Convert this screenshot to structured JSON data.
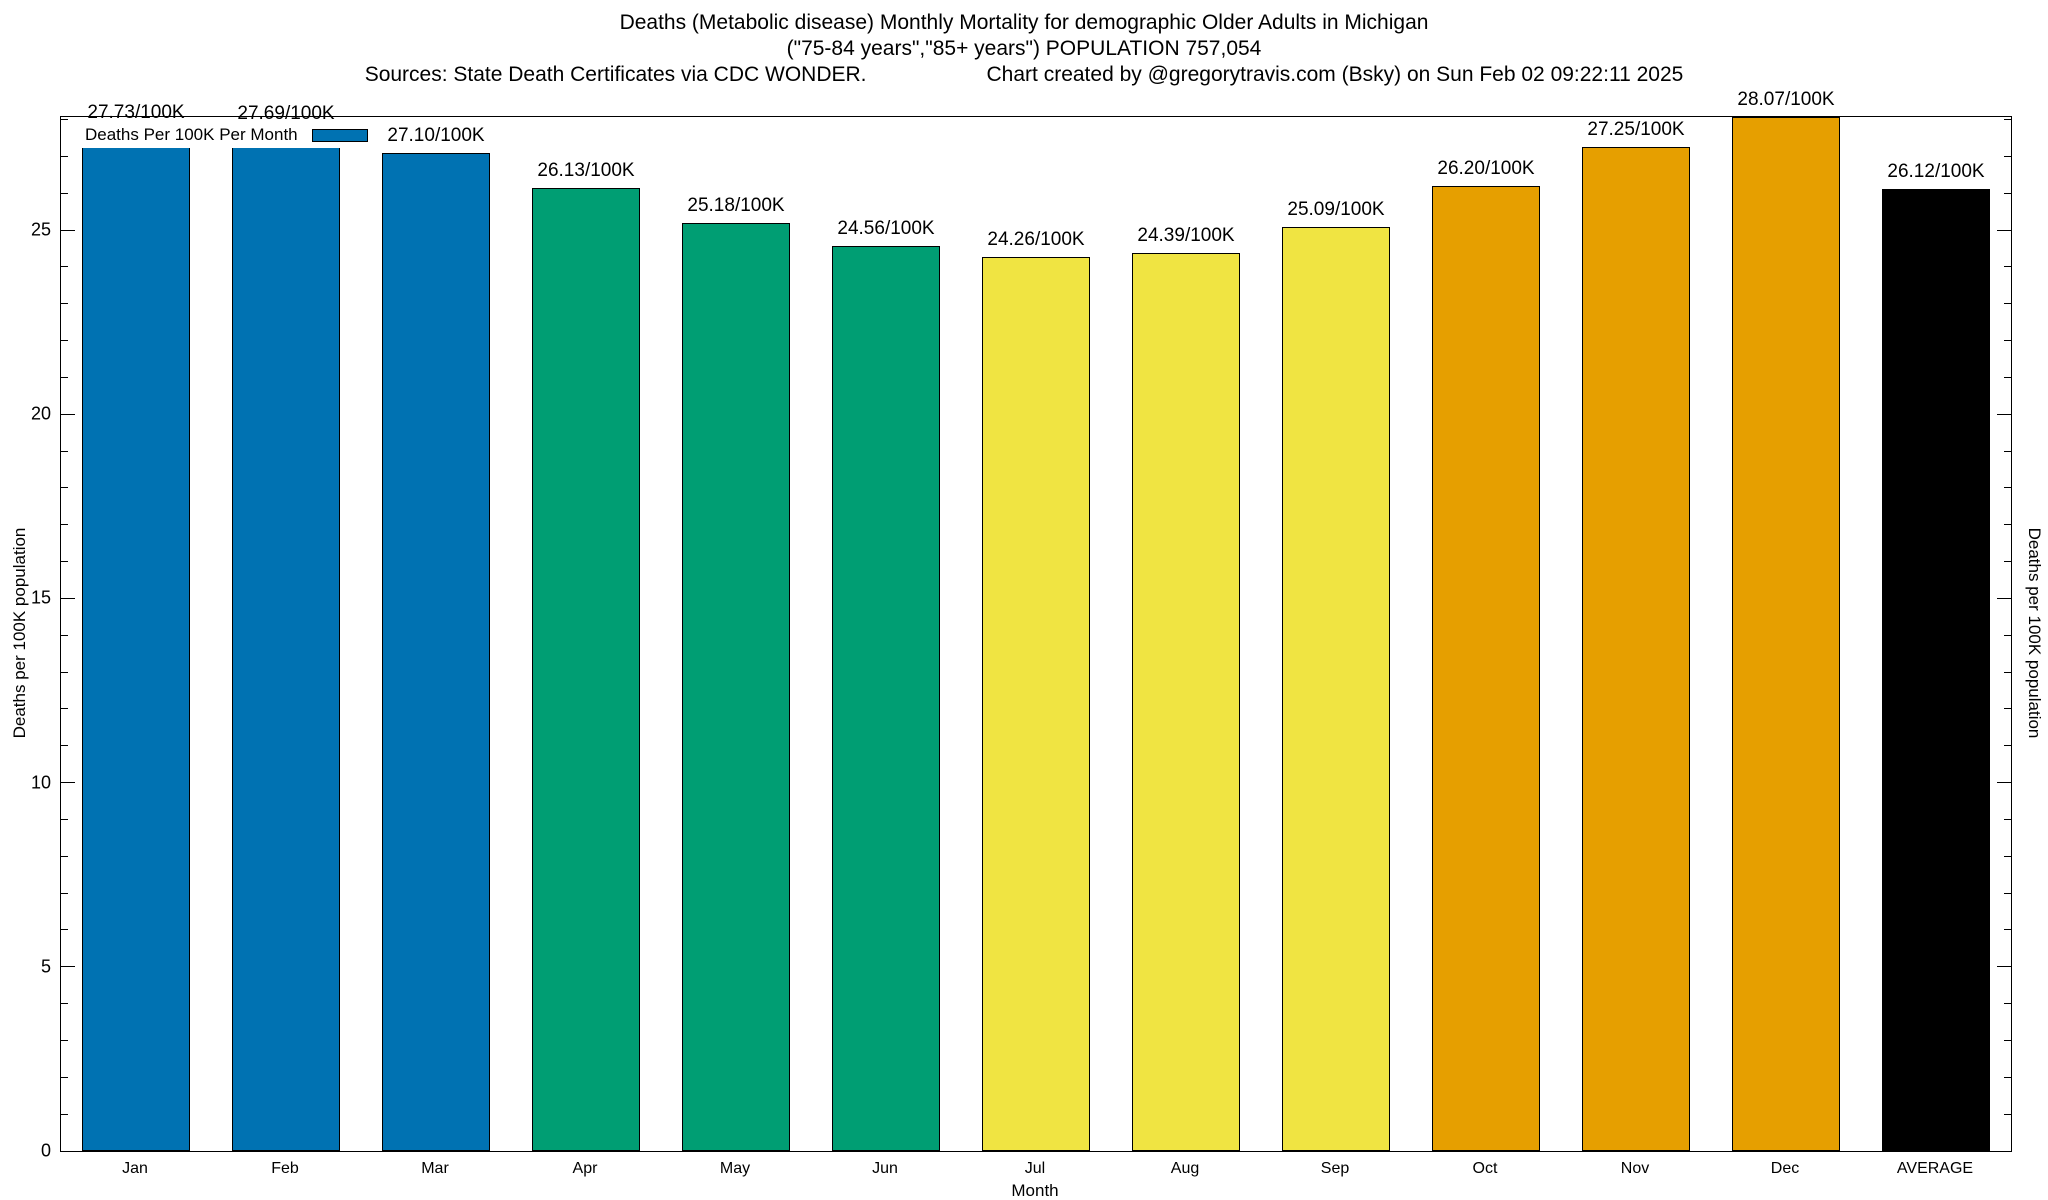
{
  "chart_data": {
    "type": "bar",
    "title": "Deaths (Metabolic disease) Monthly Mortality for demographic Older Adults in Michigan",
    "subtitle": "(\"75-84 years\",\"85+ years\") POPULATION 757,054",
    "source_note": "Sources: State Death Certificates via CDC WONDER.",
    "credit_note": "Chart created by @gregorytravis.com (Bsky) on Sun Feb 02 09:22:11 2025",
    "legend_label": "Deaths Per 100K Per Month",
    "legend_color": "#0072B2",
    "legend_position": "top-left-inside",
    "categories": [
      "Jan",
      "Feb",
      "Mar",
      "Apr",
      "May",
      "Jun",
      "Jul",
      "Aug",
      "Sep",
      "Oct",
      "Nov",
      "Dec",
      "AVERAGE"
    ],
    "values": [
      27.73,
      27.69,
      27.1,
      26.13,
      25.18,
      24.56,
      24.26,
      24.39,
      25.09,
      26.2,
      27.25,
      28.07,
      26.12
    ],
    "bar_labels": [
      "27.73/100K",
      "27.69/100K",
      "27.10/100K",
      "26.13/100K",
      "25.18/100K",
      "24.56/100K",
      "24.26/100K",
      "24.39/100K",
      "25.09/100K",
      "26.20/100K",
      "27.25/100K",
      "28.07/100K",
      "26.12/100K"
    ],
    "colors": [
      "#0072B2",
      "#0072B2",
      "#0072B2",
      "#009E73",
      "#009E73",
      "#009E73",
      "#F0E442",
      "#F0E442",
      "#F0E442",
      "#E69F00",
      "#E69F00",
      "#E69F00",
      "#000000"
    ],
    "xlabel": "Month",
    "ylabel_left": "Deaths per 100K population",
    "ylabel_right": "Deaths per 100K population",
    "y_ticks": [
      0,
      5,
      10,
      15,
      20,
      25
    ],
    "y_minor_step": 1,
    "ylim": [
      0,
      28.07
    ],
    "grid": false
  }
}
